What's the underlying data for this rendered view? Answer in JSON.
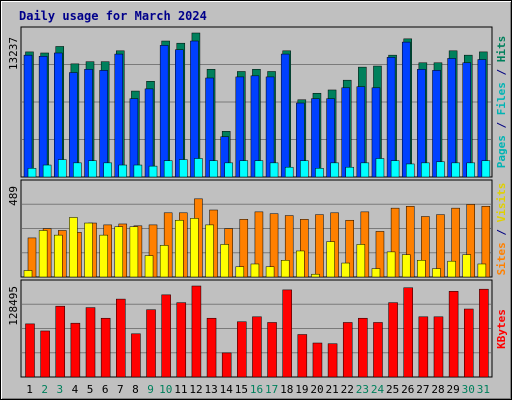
{
  "chart_data": [
    {
      "type": "bar",
      "title": "Daily usage for March 2024",
      "x": [
        "1",
        "2",
        "3",
        "4",
        "5",
        "6",
        "7",
        "8",
        "9",
        "10",
        "11",
        "12",
        "13",
        "14",
        "15",
        "16",
        "17",
        "18",
        "19",
        "20",
        "21",
        "22",
        "23",
        "24",
        "25",
        "26",
        "27",
        "28",
        "29",
        "30",
        "31"
      ],
      "weekend_days": [
        "2",
        "3",
        "9",
        "10",
        "16",
        "17",
        "23",
        "24",
        "30",
        "31"
      ],
      "ymax_label": "13237",
      "ylim": [
        0,
        13237
      ],
      "series": [
        {
          "name": "Hits",
          "color": "#00805c",
          "values": [
            11500,
            11400,
            12000,
            10400,
            10600,
            10600,
            11600,
            7900,
            8800,
            12500,
            12300,
            13237,
            9900,
            4200,
            9700,
            9900,
            9700,
            11600,
            7100,
            7700,
            8000,
            8900,
            10100,
            10200,
            11200,
            12700,
            10500,
            10500,
            11600,
            11200,
            11500
          ]
        },
        {
          "name": "Files",
          "color": "#0040ff",
          "values": [
            11200,
            11100,
            11400,
            9600,
            9900,
            9800,
            11300,
            7200,
            8100,
            12100,
            11700,
            12500,
            9100,
            3700,
            9200,
            9300,
            9200,
            11300,
            6800,
            7200,
            7200,
            8200,
            8300,
            8200,
            11000,
            12400,
            9900,
            9800,
            10900,
            10500,
            10800
          ]
        },
        {
          "name": "Pages",
          "color": "#00ffff",
          "values": [
            800,
            1100,
            1600,
            1300,
            1500,
            1300,
            1100,
            1100,
            1000,
            1500,
            1600,
            1700,
            1500,
            1300,
            1500,
            1500,
            1300,
            900,
            1500,
            800,
            1300,
            900,
            1300,
            1700,
            1500,
            1200,
            1300,
            1400,
            1300,
            1300,
            1500
          ]
        }
      ]
    },
    {
      "type": "bar",
      "ymax_label": "489",
      "ylim": [
        0,
        489
      ],
      "series": [
        {
          "name": "Visits",
          "color": "#ffff00",
          "values": [
            35,
            250,
            225,
            320,
            290,
            225,
            270,
            270,
            115,
            170,
            305,
            315,
            280,
            175,
            55,
            70,
            55,
            90,
            140,
            15,
            190,
            75,
            175,
            45,
            135,
            120,
            90,
            45,
            85,
            120,
            70
          ]
        },
        {
          "name": "Sites",
          "color": "#ff8000",
          "values": [
            210,
            260,
            250,
            240,
            290,
            280,
            285,
            275,
            280,
            345,
            345,
            420,
            360,
            260,
            310,
            350,
            340,
            330,
            310,
            335,
            345,
            305,
            350,
            245,
            370,
            380,
            325,
            335,
            370,
            390,
            380
          ]
        }
      ]
    },
    {
      "type": "bar",
      "ymax_label": "128495",
      "ylim": [
        0,
        128495
      ],
      "series": [
        {
          "name": "KBytes",
          "color": "#ff0000",
          "values": [
            75000,
            65000,
            100000,
            76000,
            98000,
            83000,
            110000,
            61000,
            95000,
            116000,
            105000,
            128495,
            83000,
            34000,
            78000,
            85000,
            77000,
            123000,
            60000,
            48000,
            47000,
            77000,
            83000,
            77000,
            105000,
            126000,
            85000,
            85000,
            121000,
            96000,
            124000
          ]
        }
      ]
    }
  ]
}
